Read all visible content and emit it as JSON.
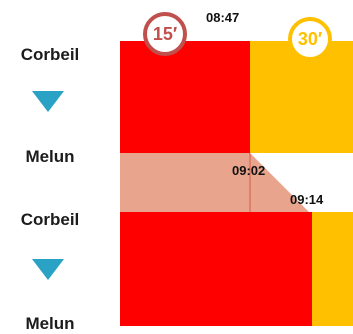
{
  "stops": {
    "top_origin": "Corbeil",
    "top_destination": "Melun",
    "bottom_origin": "Corbeil",
    "bottom_destination": "Melun"
  },
  "times": {
    "t1": "08:47",
    "t2": "09:02",
    "t3": "09:14"
  },
  "badges": {
    "red": "15′",
    "yellow": "30′"
  },
  "colors": {
    "red": "#ff0000",
    "yellow": "#ffc000",
    "salmon": "#e8a48c",
    "badge_red_ring": "#c0504d",
    "badge_yellow_ring": "#ffc000",
    "arrow": "#2aa2c6"
  }
}
